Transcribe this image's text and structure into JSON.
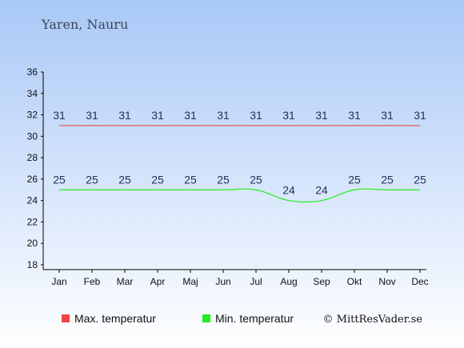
{
  "place": "Yaren, Nauru",
  "credit": "© MittResVader.se",
  "colors": {
    "max": "#ee4444",
    "min": "#22ee22",
    "bg_top": "#a9c8f7",
    "bg_bottom": "#ffffff",
    "label": "#1e2f5a"
  },
  "chart_data": {
    "type": "line",
    "title": "",
    "xlabel": "",
    "ylabel": "",
    "categories": [
      "Jan",
      "Feb",
      "Mar",
      "Apr",
      "Maj",
      "Jun",
      "Jul",
      "Aug",
      "Sep",
      "Okt",
      "Nov",
      "Dec"
    ],
    "ylim": [
      18,
      36
    ],
    "yticks": [
      18,
      20,
      22,
      24,
      26,
      28,
      30,
      32,
      34,
      36
    ],
    "grid": false,
    "legend_position": "bottom",
    "series": [
      {
        "name": "Max. temperatur",
        "color": "#ee4444",
        "values": [
          31,
          31,
          31,
          31,
          31,
          31,
          31,
          31,
          31,
          31,
          31,
          31
        ]
      },
      {
        "name": "Min. temperatur",
        "color": "#22ee22",
        "values": [
          25,
          25,
          25,
          25,
          25,
          25,
          25,
          24,
          24,
          25,
          25,
          25
        ]
      }
    ]
  }
}
